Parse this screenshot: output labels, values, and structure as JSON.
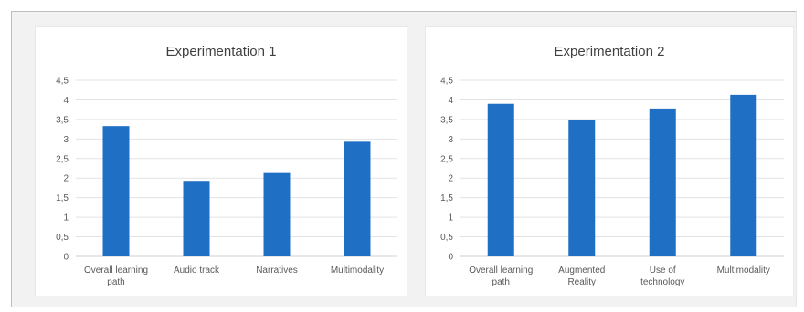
{
  "chart_data": [
    {
      "type": "bar",
      "title": "Experimentation 1",
      "categories": [
        [
          "Overall learning",
          "path"
        ],
        [
          "Audio track"
        ],
        [
          "Narratives"
        ],
        [
          "Multimodality"
        ]
      ],
      "values": [
        3.33,
        1.93,
        2.13,
        2.93
      ],
      "ylim": [
        0,
        4.5
      ],
      "yticks": [
        "0",
        "0,5",
        "1",
        "1,5",
        "2",
        "2,5",
        "3",
        "3,5",
        "4",
        "4,5"
      ],
      "grid": true,
      "bar_color": "#1f6fc5"
    },
    {
      "type": "bar",
      "title": "Experimentation 2",
      "categories": [
        [
          "Overall learning",
          "path"
        ],
        [
          "Augmented",
          "Reality"
        ],
        [
          "Use of",
          "technology"
        ],
        [
          "Multimodality"
        ]
      ],
      "values": [
        3.9,
        3.49,
        3.78,
        4.13
      ],
      "ylim": [
        0,
        4.5
      ],
      "yticks": [
        "0",
        "0,5",
        "1",
        "1,5",
        "2",
        "2,5",
        "3",
        "3,5",
        "4",
        "4,5"
      ],
      "grid": true,
      "bar_color": "#1f6fc5"
    }
  ]
}
